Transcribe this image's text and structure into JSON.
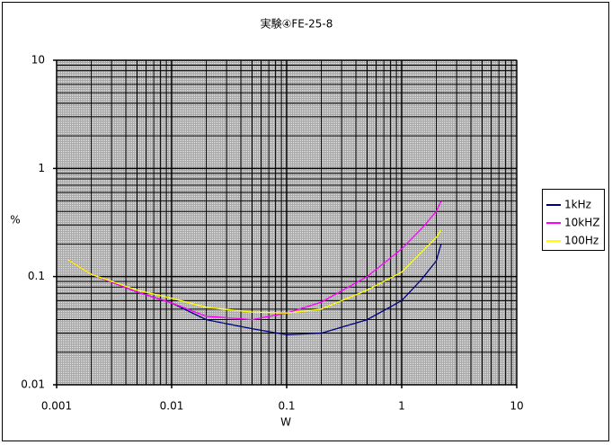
{
  "chart_data": {
    "type": "line",
    "title": "実験④FE-25-8",
    "x_label": "W",
    "y_label": "%",
    "x": [
      0.00124,
      0.002,
      0.005,
      0.01,
      0.02,
      0.05,
      0.1,
      0.2,
      0.5,
      1,
      1.5,
      2,
      2.2
    ],
    "series": [
      {
        "name": "1kHz",
        "color": "#000080",
        "values": [
          0.144,
          0.105,
          0.072,
          0.057,
          0.04,
          0.033,
          0.029,
          0.03,
          0.04,
          0.06,
          0.095,
          0.14,
          0.2
        ]
      },
      {
        "name": "10kHZ",
        "color": "#ff00ff",
        "values": [
          0.144,
          0.105,
          0.072,
          0.057,
          0.043,
          0.04,
          0.046,
          0.058,
          0.1,
          0.18,
          0.28,
          0.4,
          0.5
        ]
      },
      {
        "name": "100Hz",
        "color": "#ffff00",
        "values": [
          0.144,
          0.105,
          0.075,
          0.063,
          0.052,
          0.047,
          0.046,
          0.05,
          0.075,
          0.11,
          0.17,
          0.23,
          0.27
        ]
      }
    ],
    "xlim": [
      0.001,
      10
    ],
    "ylim": [
      0.01,
      10
    ],
    "xticks": [
      0.001,
      0.01,
      0.1,
      1,
      10
    ],
    "yticks": [
      0.01,
      0.1,
      1,
      10
    ],
    "log_x": true,
    "log_y": true,
    "grid": true,
    "minor_grid": true,
    "legend": "right"
  }
}
